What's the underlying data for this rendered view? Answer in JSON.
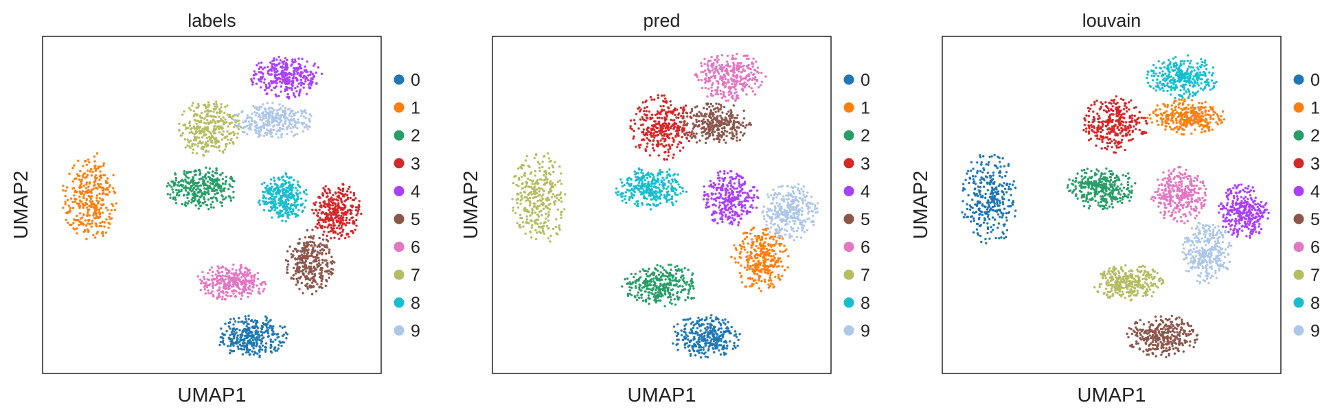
{
  "chart_data": [
    {
      "type": "scatter",
      "title": "labels",
      "xlabel": "UMAP1",
      "ylabel": "UMAP2",
      "xlim": [
        0,
        100
      ],
      "ylim": [
        0,
        100
      ],
      "grid": false,
      "legend_position": "right",
      "legend": [
        "0",
        "1",
        "2",
        "3",
        "4",
        "5",
        "6",
        "7",
        "8",
        "9"
      ],
      "clusters": [
        {
          "label": "0",
          "cx": 62,
          "cy": 11,
          "rx": 10,
          "ry": 6
        },
        {
          "label": "1",
          "cx": 14,
          "cy": 52,
          "rx": 8,
          "ry": 13
        },
        {
          "label": "2",
          "cx": 47,
          "cy": 55,
          "rx": 10,
          "ry": 6
        },
        {
          "label": "3",
          "cx": 87,
          "cy": 48,
          "rx": 7,
          "ry": 8
        },
        {
          "label": "4",
          "cx": 72,
          "cy": 88,
          "rx": 10,
          "ry": 6
        },
        {
          "label": "5",
          "cx": 79,
          "cy": 33,
          "rx": 7,
          "ry": 9
        },
        {
          "label": "6",
          "cx": 56,
          "cy": 27,
          "rx": 10,
          "ry": 5
        },
        {
          "label": "7",
          "cx": 49,
          "cy": 73,
          "rx": 9,
          "ry": 8
        },
        {
          "label": "8",
          "cx": 71,
          "cy": 52,
          "rx": 7,
          "ry": 7
        },
        {
          "label": "9",
          "cx": 68,
          "cy": 75,
          "rx": 11,
          "ry": 5
        }
      ]
    },
    {
      "type": "scatter",
      "title": "pred",
      "xlabel": "UMAP1",
      "ylabel": "UMAP2",
      "xlim": [
        0,
        100
      ],
      "ylim": [
        0,
        100
      ],
      "grid": false,
      "legend_position": "right",
      "legend": [
        "0",
        "1",
        "2",
        "3",
        "4",
        "5",
        "6",
        "7",
        "8",
        "9"
      ],
      "clusters": [
        {
          "label": "0",
          "cx": 63,
          "cy": 11,
          "rx": 10,
          "ry": 6
        },
        {
          "label": "1",
          "cx": 79,
          "cy": 34,
          "rx": 8,
          "ry": 9
        },
        {
          "label": "2",
          "cx": 50,
          "cy": 26,
          "rx": 11,
          "ry": 6
        },
        {
          "label": "3",
          "cx": 50,
          "cy": 73,
          "rx": 9,
          "ry": 9
        },
        {
          "label": "4",
          "cx": 70,
          "cy": 52,
          "rx": 8,
          "ry": 8
        },
        {
          "label": "5",
          "cx": 66,
          "cy": 74,
          "rx": 10,
          "ry": 6
        },
        {
          "label": "6",
          "cx": 70,
          "cy": 88,
          "rx": 10,
          "ry": 7
        },
        {
          "label": "7",
          "cx": 14,
          "cy": 52,
          "rx": 8,
          "ry": 13
        },
        {
          "label": "8",
          "cx": 47,
          "cy": 55,
          "rx": 10,
          "ry": 6
        },
        {
          "label": "9",
          "cx": 88,
          "cy": 48,
          "rx": 8,
          "ry": 8
        }
      ]
    },
    {
      "type": "scatter",
      "title": "louvain",
      "xlabel": "UMAP1",
      "ylabel": "UMAP2",
      "xlim": [
        0,
        100
      ],
      "ylim": [
        0,
        100
      ],
      "grid": false,
      "legend_position": "right",
      "legend": [
        "0",
        "1",
        "2",
        "3",
        "4",
        "5",
        "6",
        "7",
        "8",
        "9"
      ],
      "clusters": [
        {
          "label": "0",
          "cx": 14,
          "cy": 52,
          "rx": 8,
          "ry": 13
        },
        {
          "label": "1",
          "cx": 72,
          "cy": 76,
          "rx": 11,
          "ry": 5
        },
        {
          "label": "2",
          "cx": 47,
          "cy": 55,
          "rx": 10,
          "ry": 6
        },
        {
          "label": "3",
          "cx": 51,
          "cy": 74,
          "rx": 9,
          "ry": 8
        },
        {
          "label": "4",
          "cx": 89,
          "cy": 48,
          "rx": 7,
          "ry": 8
        },
        {
          "label": "5",
          "cx": 65,
          "cy": 11,
          "rx": 10,
          "ry": 6
        },
        {
          "label": "6",
          "cx": 70,
          "cy": 53,
          "rx": 8,
          "ry": 8
        },
        {
          "label": "7",
          "cx": 55,
          "cy": 27,
          "rx": 10,
          "ry": 5
        },
        {
          "label": "8",
          "cx": 71,
          "cy": 88,
          "rx": 10,
          "ry": 6
        },
        {
          "label": "9",
          "cx": 78,
          "cy": 36,
          "rx": 7,
          "ry": 9
        }
      ]
    }
  ],
  "palette": [
    "#1f77b4",
    "#ff7f0e",
    "#279e68",
    "#d62728",
    "#aa40fc",
    "#8c564b",
    "#e377c2",
    "#b5bd61",
    "#17becf",
    "#aec7e8"
  ]
}
